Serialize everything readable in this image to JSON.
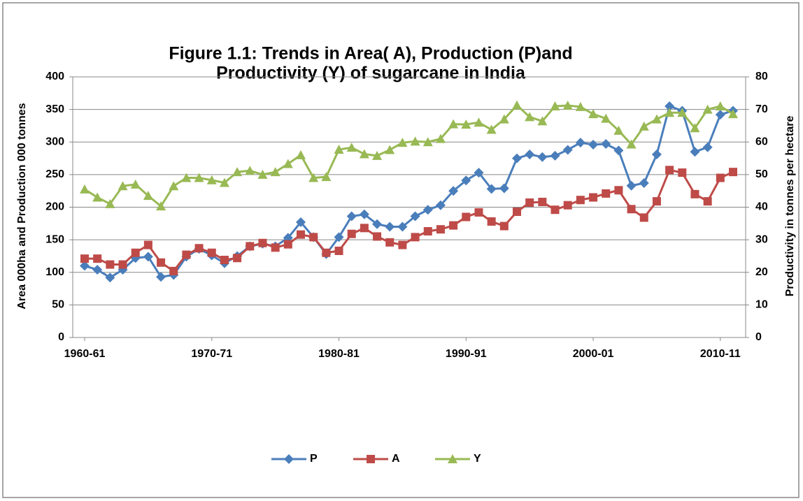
{
  "chart_data": {
    "type": "line",
    "title": [
      "Figure 1.1: Trends in Area( A), Production (P)and",
      "Productivity (Y) of sugarcane in India"
    ],
    "y_label": "Area 000ha and Production 000 tonnes",
    "y2_label": "Productivity in tonnes per hectare",
    "categories": [
      "1960-61",
      null,
      null,
      null,
      null,
      null,
      null,
      null,
      null,
      null,
      "1970-71",
      null,
      null,
      null,
      null,
      null,
      null,
      null,
      null,
      null,
      "1980-81",
      null,
      null,
      null,
      null,
      null,
      null,
      null,
      null,
      null,
      "1990-91",
      null,
      null,
      null,
      null,
      null,
      null,
      null,
      null,
      null,
      "2000-01",
      null,
      null,
      null,
      null,
      null,
      null,
      null,
      null,
      null,
      "2010-11",
      null
    ],
    "series": [
      {
        "name": "P",
        "color": "#4a7ebb",
        "marker": "diamond",
        "values": [
          110,
          104,
          92,
          104,
          122,
          124,
          93,
          96,
          124,
          136,
          126,
          114,
          125,
          140,
          144,
          140,
          153,
          177,
          154,
          128,
          154,
          186,
          189,
          174,
          170,
          170,
          186,
          196,
          203,
          225,
          241,
          253,
          228,
          229,
          275,
          281,
          277,
          279,
          288,
          299,
          296,
          297,
          287,
          233,
          237,
          281,
          355,
          348,
          285,
          292,
          342,
          348
        ]
      },
      {
        "name": "A",
        "color": "#be4b48",
        "marker": "square",
        "values": [
          121,
          121,
          112,
          112,
          130,
          142,
          115,
          102,
          127,
          137,
          130,
          119,
          122,
          140,
          145,
          138,
          143,
          158,
          154,
          130,
          133,
          159,
          168,
          155,
          146,
          142,
          154,
          163,
          166,
          172,
          185,
          192,
          178,
          171,
          193,
          207,
          208,
          196,
          203,
          211,
          215,
          221,
          226,
          197,
          184,
          209,
          257,
          253,
          220,
          209,
          245,
          254
        ]
      },
      {
        "name": "Y",
        "color": "#98b954",
        "marker": "triangle",
        "axis": "y2",
        "values": [
          45.5,
          43,
          41,
          46.5,
          47,
          43.5,
          40.3,
          46.5,
          49,
          49,
          48.3,
          47.5,
          50.8,
          51.2,
          50,
          50.8,
          53.3,
          56,
          49,
          49.3,
          57.7,
          58.3,
          56.3,
          55.8,
          57.6,
          59.8,
          60.2,
          60,
          61,
          65.5,
          65.4,
          66,
          63.8,
          67,
          71.3,
          67.7,
          66.4,
          71,
          71.2,
          70.8,
          68.6,
          67.2,
          63.5,
          59.3,
          64.8,
          67,
          69,
          69,
          64.3,
          70,
          71,
          68.6
        ]
      }
    ],
    "ylim": [
      0,
      400
    ],
    "yticks": [
      0,
      50,
      100,
      150,
      200,
      250,
      300,
      350,
      400
    ],
    "y2lim": [
      0,
      80
    ],
    "y2ticks": [
      0,
      10,
      20,
      30,
      40,
      50,
      60,
      70,
      80
    ],
    "grid": true,
    "legend": "bottom"
  }
}
